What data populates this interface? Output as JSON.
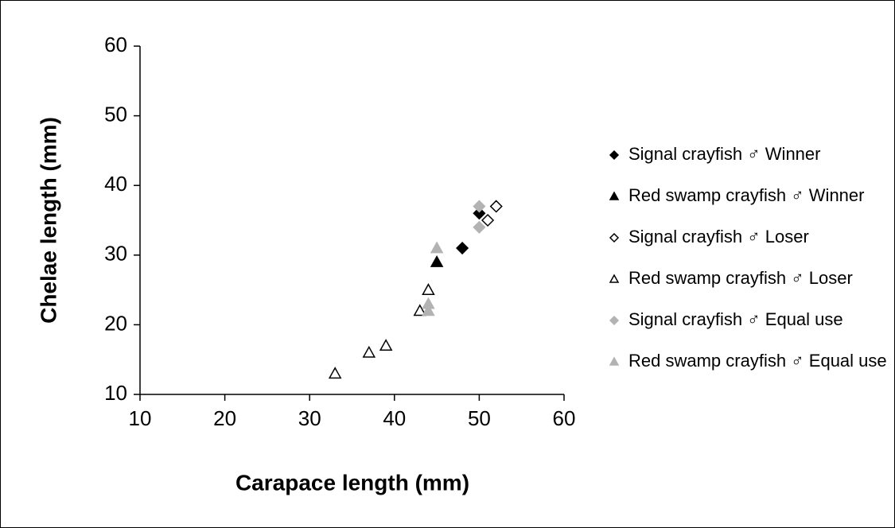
{
  "chart_data": {
    "type": "scatter",
    "x_label": "Carapace length (mm)",
    "y_label": "Chelae length (mm)",
    "xlim": [
      10,
      60
    ],
    "xticks": [
      10,
      20,
      30,
      40,
      50,
      60
    ],
    "ylim": [
      10,
      60
    ],
    "yticks": [
      10,
      20,
      30,
      40,
      50,
      60
    ],
    "legend": "right",
    "series": [
      {
        "name": "Signal crayfish ♂ Winner",
        "color": "#000000",
        "marker": "diamond",
        "filled": true,
        "x": [
          48,
          50
        ],
        "values": [
          31,
          36
        ]
      },
      {
        "name": "Red swamp crayfish ♂ Winner",
        "color": "#000000",
        "marker": "triangle",
        "filled": true,
        "x": [
          45
        ],
        "values": [
          29
        ]
      },
      {
        "name": "Signal crayfish ♂ Loser",
        "color": "#000000",
        "marker": "diamond",
        "filled": false,
        "x": [
          52,
          51
        ],
        "values": [
          37,
          35
        ]
      },
      {
        "name": "Red swamp crayfish ♂ Loser",
        "color": "#000000",
        "marker": "triangle",
        "filled": false,
        "x": [
          33,
          37,
          39,
          43,
          44
        ],
        "values": [
          13,
          16,
          17,
          22,
          25
        ]
      },
      {
        "name": "Signal crayfish ♂ Equal use",
        "color": "#b3b3b3",
        "marker": "diamond",
        "filled": true,
        "x": [
          50,
          50
        ],
        "values": [
          37,
          34
        ]
      },
      {
        "name": "Red swamp crayfish ♂ Equal use",
        "color": "#b3b3b3",
        "marker": "triangle",
        "filled": true,
        "x": [
          45,
          44,
          44
        ],
        "values": [
          31,
          23,
          22
        ]
      }
    ]
  }
}
